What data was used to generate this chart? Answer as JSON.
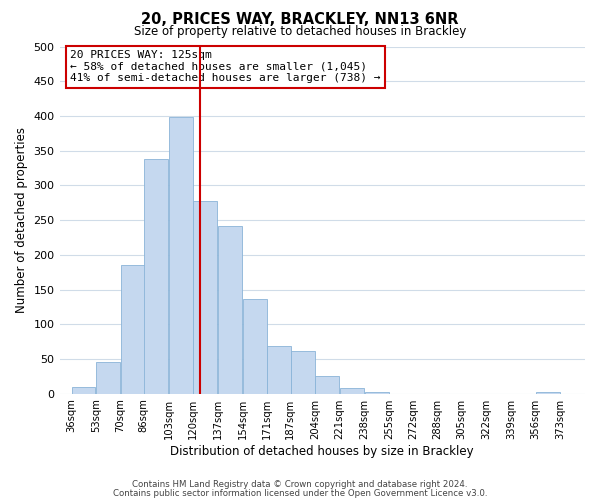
{
  "title": "20, PRICES WAY, BRACKLEY, NN13 6NR",
  "subtitle": "Size of property relative to detached houses in Brackley",
  "xlabel": "Distribution of detached houses by size in Brackley",
  "ylabel": "Number of detached properties",
  "bar_left_edges": [
    36,
    53,
    70,
    86,
    103,
    120,
    137,
    154,
    171,
    187,
    204,
    221,
    238,
    255,
    272,
    288,
    305,
    322,
    339,
    356
  ],
  "bar_heights": [
    10,
    46,
    185,
    338,
    398,
    278,
    242,
    137,
    68,
    62,
    25,
    8,
    2,
    0,
    0,
    0,
    0,
    0,
    0,
    2
  ],
  "bin_width": 17,
  "bar_color": "#c5d8ef",
  "bar_edgecolor": "#8ab4d8",
  "property_line_x": 125,
  "property_line_color": "#cc0000",
  "ylim": [
    0,
    500
  ],
  "yticks": [
    0,
    50,
    100,
    150,
    200,
    250,
    300,
    350,
    400,
    450,
    500
  ],
  "xtick_labels": [
    "36sqm",
    "53sqm",
    "70sqm",
    "86sqm",
    "103sqm",
    "120sqm",
    "137sqm",
    "154sqm",
    "171sqm",
    "187sqm",
    "204sqm",
    "221sqm",
    "238sqm",
    "255sqm",
    "272sqm",
    "288sqm",
    "305sqm",
    "322sqm",
    "339sqm",
    "356sqm",
    "373sqm"
  ],
  "xtick_positions": [
    36,
    53,
    70,
    86,
    103,
    120,
    137,
    154,
    171,
    187,
    204,
    221,
    238,
    255,
    272,
    288,
    305,
    322,
    339,
    356,
    373
  ],
  "annotation_title": "20 PRICES WAY: 125sqm",
  "annotation_line1": "← 58% of detached houses are smaller (1,045)",
  "annotation_line2": "41% of semi-detached houses are larger (738) →",
  "grid_color": "#d0dce8",
  "background_color": "#ffffff",
  "footer_line1": "Contains HM Land Registry data © Crown copyright and database right 2024.",
  "footer_line2": "Contains public sector information licensed under the Open Government Licence v3.0."
}
